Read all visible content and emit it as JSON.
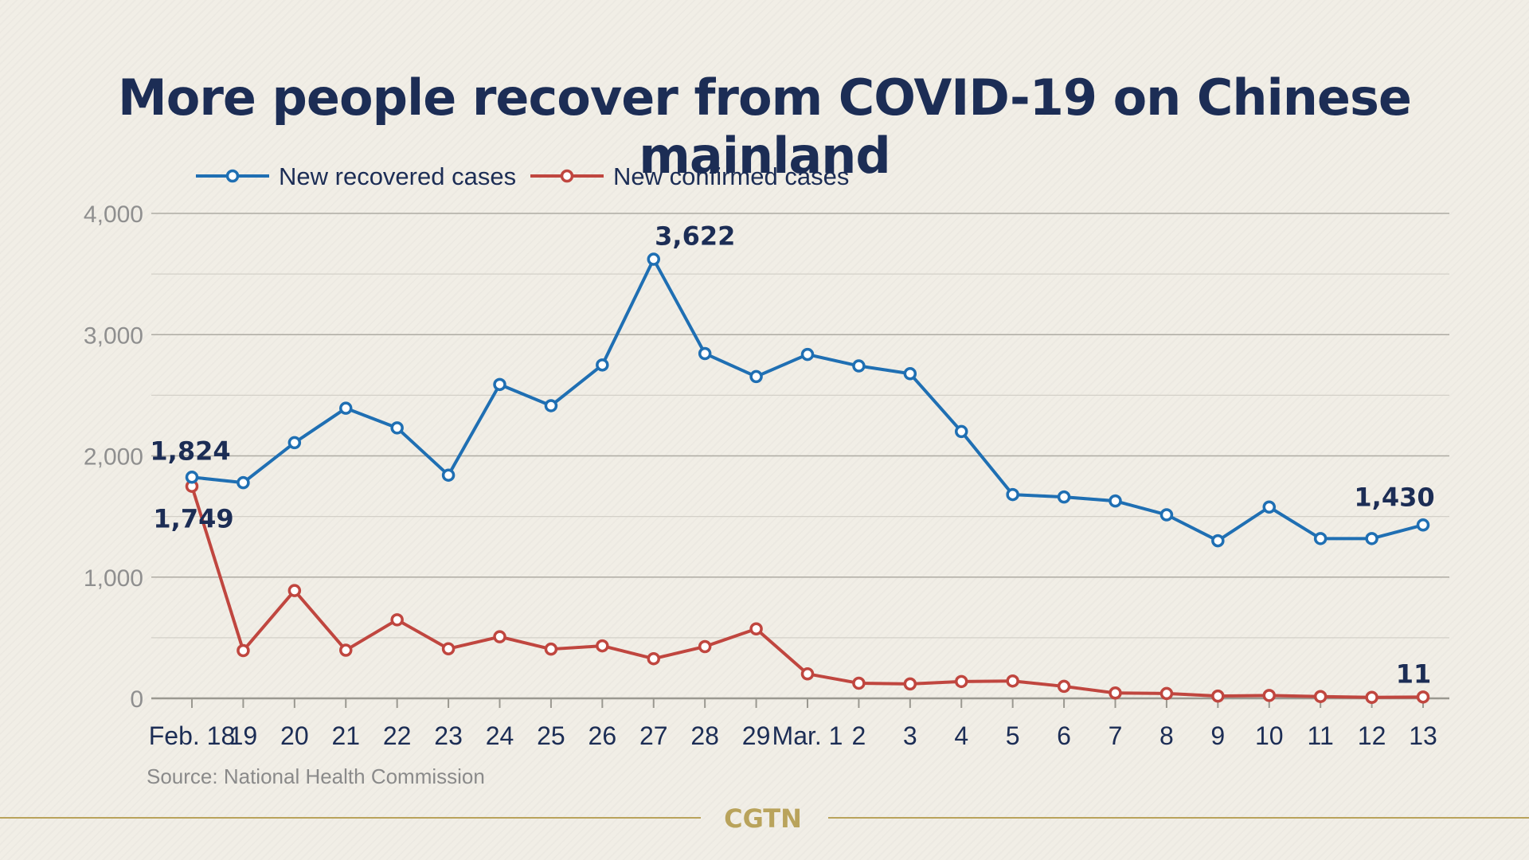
{
  "chart_data": {
    "type": "line",
    "title": "More people recover from COVID-19 on Chinese mainland",
    "xlabel": "",
    "ylabel": "",
    "categories": [
      "Feb. 18",
      "19",
      "20",
      "21",
      "22",
      "23",
      "24",
      "25",
      "26",
      "27",
      "28",
      "29",
      "Mar. 1",
      "2",
      "3",
      "4",
      "5",
      "6",
      "7",
      "8",
      "9",
      "10",
      "11",
      "12",
      "13"
    ],
    "ylim": [
      0,
      4000
    ],
    "yticks": [
      0,
      1000,
      2000,
      3000,
      4000
    ],
    "ytick_labels": [
      "0",
      "1,000",
      "2,000",
      "3,000",
      "4,000"
    ],
    "grid": true,
    "legend_position": "top-left",
    "series": [
      {
        "name": "New recovered cases",
        "color": "#1f6fb3",
        "values": [
          1824,
          1779,
          2109,
          2393,
          2231,
          1841,
          2589,
          2414,
          2750,
          3622,
          2844,
          2654,
          2837,
          2742,
          2678,
          2201,
          1681,
          1661,
          1628,
          1514,
          1300,
          1578,
          1318,
          1318,
          1430
        ]
      },
      {
        "name": "New confirmed cases",
        "color": "#c0463f",
        "values": [
          1749,
          394,
          889,
          397,
          648,
          409,
          508,
          406,
          433,
          327,
          427,
          573,
          202,
          125,
          119,
          139,
          143,
          99,
          44,
          40,
          19,
          24,
          15,
          8,
          11
        ]
      }
    ],
    "annotations": [
      {
        "series": 0,
        "index": 0,
        "text": "1,824"
      },
      {
        "series": 1,
        "index": 0,
        "text": "1,749"
      },
      {
        "series": 0,
        "index": 9,
        "text": "3,622"
      },
      {
        "series": 0,
        "index": 24,
        "text": "1,430"
      },
      {
        "series": 1,
        "index": 24,
        "text": "11"
      }
    ],
    "source": "Source: National Health Commission"
  },
  "brand": "CGTN",
  "colors": {
    "background": "#f1eee6",
    "title": "#1c2d55",
    "gridline": "#c9c6bd",
    "gold": "#b9a35b"
  }
}
